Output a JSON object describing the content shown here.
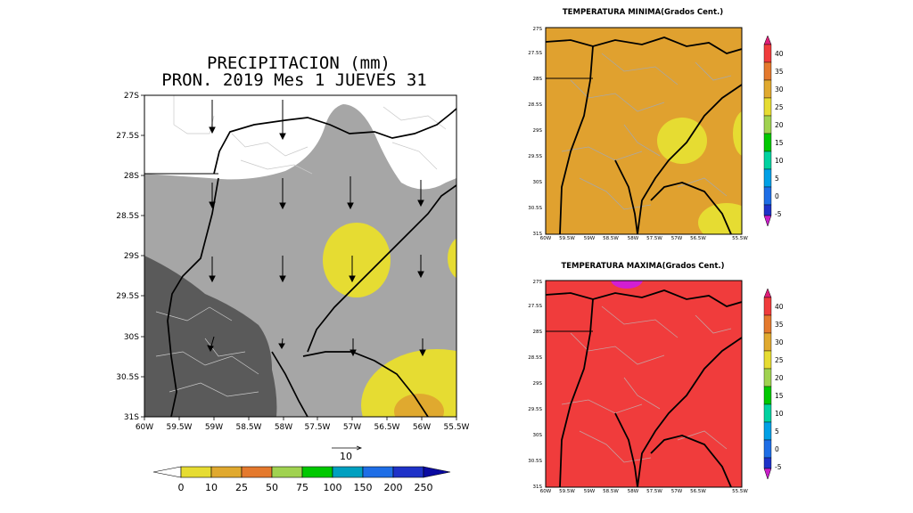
{
  "precip_map": {
    "title_line1": "PRECIPITACION (mm)",
    "title_line2": "PRON. 2019 Mes 1 JUEVES 31",
    "lat_ticks": [
      "27S",
      "27.5S",
      "28S",
      "28.5S",
      "29S",
      "29.5S",
      "30S",
      "30.5S",
      "31S"
    ],
    "lon_ticks": [
      "60W",
      "59.5W",
      "59W",
      "58.5W",
      "58W",
      "57.5W",
      "57W",
      "56.5W",
      "56W",
      "55.5W"
    ],
    "wind_scale_label": "10",
    "colorbar": {
      "labels": [
        "0",
        "10",
        "25",
        "50",
        "75",
        "100",
        "150",
        "200",
        "250"
      ],
      "colors": [
        "#e6dc32",
        "#e0a92f",
        "#e4792d",
        "#a0d250",
        "#00c800",
        "#00a0c0",
        "#1e6ee6",
        "#1e32c8"
      ]
    }
  },
  "tmin_map": {
    "title": "TEMPERATURA MINIMA(Grados Cent.)",
    "lat_ticks": [
      "27S",
      "27.5S",
      "28S",
      "28.5S",
      "29S",
      "29.5S",
      "30S",
      "30.5S",
      "31S"
    ],
    "lon_ticks": [
      "60W",
      "59.5W",
      "59W",
      "58.5W",
      "58W",
      "57.5W",
      "57W",
      "56.5W",
      "55.5W"
    ],
    "colorbar_labels": [
      "40",
      "35",
      "30",
      "25",
      "20",
      "15",
      "10",
      "5",
      "0",
      "-5"
    ]
  },
  "tmax_map": {
    "title": "TEMPERATURA MAXIMA(Grados Cent.)",
    "lat_ticks": [
      "27S",
      "27.5S",
      "28S",
      "28.5S",
      "29S",
      "29.5S",
      "30S",
      "30.5S",
      "31S"
    ],
    "lon_ticks": [
      "60W",
      "59.5W",
      "59W",
      "58.5W",
      "58W",
      "57.5W",
      "57W",
      "56.5W",
      "55.5W"
    ],
    "colorbar_labels": [
      "40",
      "35",
      "30",
      "25",
      "20",
      "15",
      "10",
      "5",
      "0",
      "-5"
    ]
  },
  "colors": {
    "precip_white": "#ffffff",
    "precip_light_gray": "#a6a6a6",
    "precip_dark_gray": "#5a5a5a",
    "precip_yellow": "#e6dc32",
    "precip_orange": "#e0a92f",
    "tmin_fill": "#e0a12f",
    "tmin_yellow": "#e6dc32",
    "tmax_fill": "#f03c3c",
    "tmax_magenta": "#d21ed2",
    "temp_scale": [
      "#c81ec8",
      "#e01e78",
      "#f03c3c",
      "#e4792d",
      "#e0a92f",
      "#e6dc32",
      "#a0d250",
      "#00c800",
      "#00d2a0",
      "#00a0e6",
      "#1e6ee6",
      "#1e32c8"
    ]
  }
}
